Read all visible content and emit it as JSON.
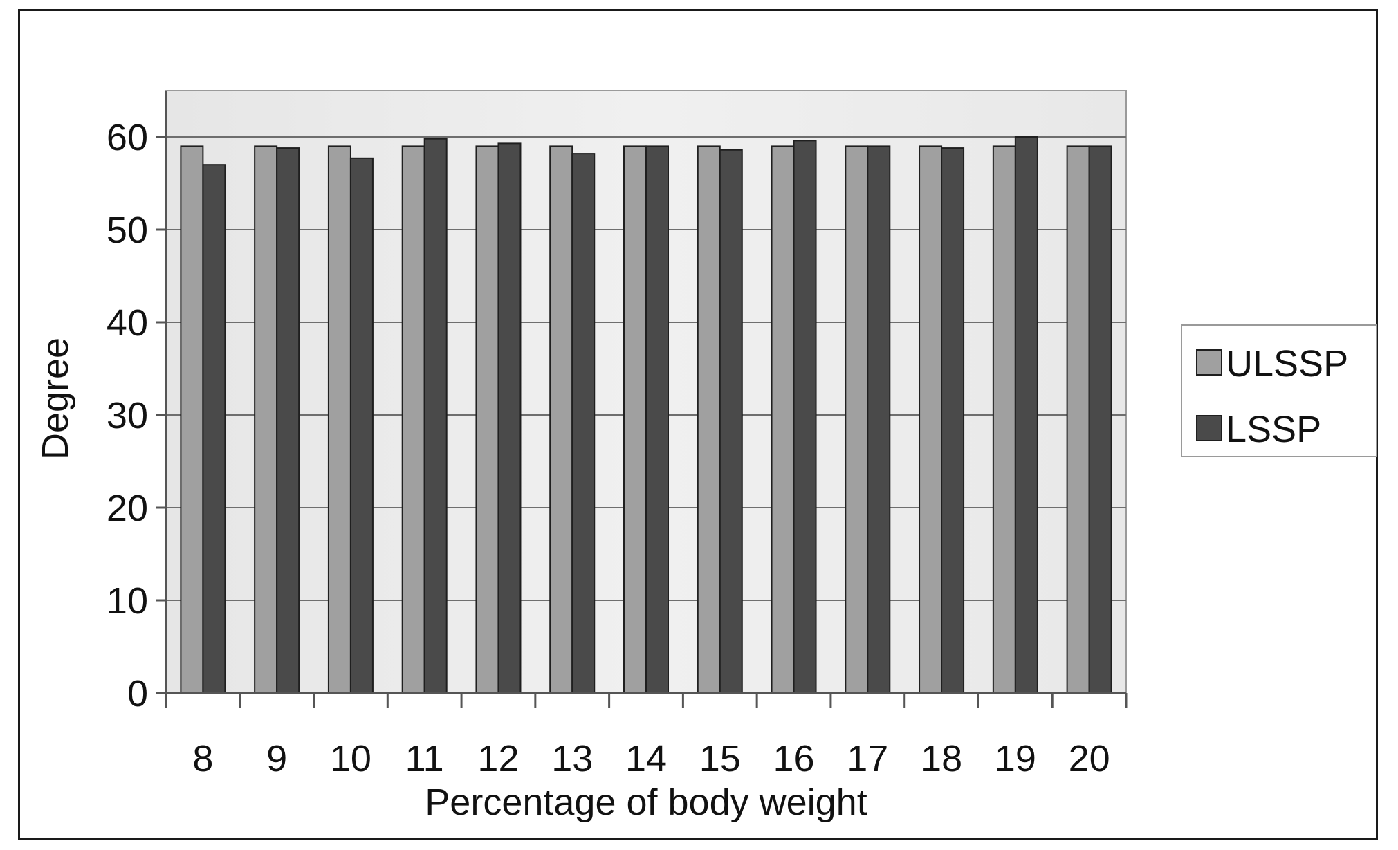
{
  "chart_data": {
    "type": "bar",
    "title": "",
    "xlabel": "Percentage of body weight",
    "ylabel": "Degree",
    "categories": [
      "8",
      "9",
      "10",
      "11",
      "12",
      "13",
      "14",
      "15",
      "16",
      "17",
      "18",
      "19",
      "20"
    ],
    "series": [
      {
        "name": "ULSSP",
        "values": [
          59,
          59,
          59,
          59,
          59,
          59,
          59,
          59,
          59,
          59,
          59,
          59,
          59
        ]
      },
      {
        "name": "LSSP",
        "values": [
          57,
          58.8,
          57.7,
          59.8,
          59.3,
          58.2,
          59,
          58.6,
          59.6,
          59,
          58.8,
          60,
          59
        ]
      }
    ],
    "yticks": [
      "0",
      "10",
      "20",
      "30",
      "40",
      "50",
      "60"
    ],
    "ylim": [
      0,
      65
    ],
    "grid": true,
    "legend": "right",
    "colors": {
      "ULSSP": "#a0a0a0",
      "LSSP": "#4a4a4a",
      "plot_background": "#e9e9e9"
    }
  }
}
